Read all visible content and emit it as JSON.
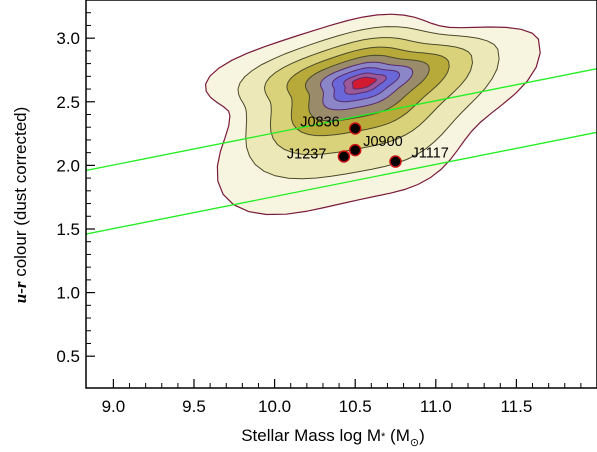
{
  "chart_data": {
    "type": "scatter",
    "title": "",
    "xlabel": "Stellar Mass log M",
    "xlabel_sub": "*",
    "xlabel_unit_open": " (M",
    "xlabel_unit_sub": "⊙",
    "xlabel_unit_close": ")",
    "ylabel_prefix": "u-r",
    "ylabel_suffix": " colour (dust corrected)",
    "xlim": [
      8.83,
      12.0
    ],
    "ylim": [
      0.25,
      3.3
    ],
    "x_ticks": [
      9.0,
      9.5,
      10.0,
      10.5,
      11.0,
      11.5
    ],
    "x_tick_labels": [
      "9.0",
      "9.5",
      "10.0",
      "10.5",
      "11.0",
      "11.5"
    ],
    "y_ticks": [
      0.5,
      1.0,
      1.5,
      2.0,
      2.5,
      3.0
    ],
    "y_tick_labels": [
      "0.5",
      "1.0",
      "1.5",
      "2.0",
      "2.5",
      "3.0"
    ],
    "grid": false,
    "legend": "none",
    "points": [
      {
        "label": "J0836",
        "x": 10.5,
        "y": 2.29
      },
      {
        "label": "J0900",
        "x": 10.5,
        "y": 2.12
      },
      {
        "label": "J1237",
        "x": 10.43,
        "y": 2.07
      },
      {
        "label": "J1117",
        "x": 10.75,
        "y": 2.03
      }
    ],
    "lines": [
      {
        "x": [
          8.83,
          12.0
        ],
        "y": [
          1.96,
          2.76
        ],
        "color": "#22ee22"
      },
      {
        "x": [
          8.83,
          12.0
        ],
        "y": [
          1.46,
          2.26
        ],
        "color": "#22ee22"
      }
    ],
    "density_contours": {
      "description_free": true,
      "peak": {
        "x": 10.55,
        "y": 2.65
      },
      "levels": [
        {
          "scale": 1.0,
          "fill": "#f7f4e0"
        },
        {
          "scale": 0.82,
          "fill": "#ece8b8"
        },
        {
          "scale": 0.66,
          "fill": "#d9d27a"
        },
        {
          "scale": 0.52,
          "fill": "#b7a93a"
        },
        {
          "scale": 0.4,
          "fill": "#9a8c6a"
        },
        {
          "scale": 0.3,
          "fill": "#8a86c8"
        },
        {
          "scale": 0.22,
          "fill": "#6a68d8"
        },
        {
          "scale": 0.14,
          "fill": "#9a5a9a"
        },
        {
          "scale": 0.08,
          "fill": "#d21a30"
        }
      ]
    },
    "colors": {
      "points": "#000000",
      "point_edge": "#cc1111",
      "outer_contour": "#7a1a3a",
      "axis": "#000000"
    }
  }
}
